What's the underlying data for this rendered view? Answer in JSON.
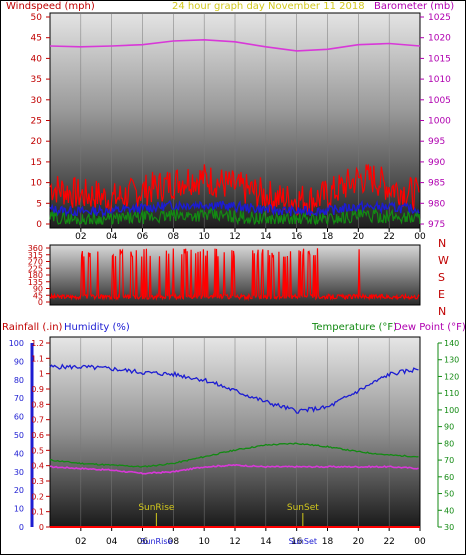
{
  "header": {
    "left": "Windspeed (mph)",
    "center": "24 hour graph day   November 11 2018",
    "right": "Barometer (mb)"
  },
  "colors": {
    "red": "#ff0000",
    "blue": "#1c1cd2",
    "green": "#138a13",
    "magenta": "#d838d8",
    "yellow": "#d2c81c",
    "frame": "#000000"
  },
  "chart_data": [
    {
      "type": "line",
      "name": "wind-barometer",
      "x_ticks": [
        "02",
        "04",
        "06",
        "08",
        "10",
        "12",
        "14",
        "16",
        "18",
        "20",
        "22",
        "00"
      ],
      "left_axis": {
        "label": "Windspeed (mph)",
        "ticks": [
          0,
          5,
          10,
          15,
          20,
          25,
          30,
          35,
          40,
          45,
          50
        ],
        "range": [
          0,
          50
        ]
      },
      "right_axis": {
        "label": "Barometer (mb)",
        "ticks": [
          975,
          980,
          985,
          990,
          995,
          1000,
          1005,
          1010,
          1015,
          1020,
          1025
        ],
        "range": [
          975,
          1025
        ]
      },
      "series": [
        {
          "name": "Barometer (mb)",
          "axis": "right",
          "color": "#d838d8",
          "points": [
            [
              0,
              1018
            ],
            [
              2,
              1017.8
            ],
            [
              4,
              1018
            ],
            [
              6,
              1018.3
            ],
            [
              8,
              1019.2
            ],
            [
              10,
              1019.5
            ],
            [
              12,
              1019
            ],
            [
              14,
              1017.8
            ],
            [
              16,
              1016.8
            ],
            [
              18,
              1017.2
            ],
            [
              20,
              1018.3
            ],
            [
              22,
              1018.6
            ],
            [
              24,
              1018
            ]
          ]
        },
        {
          "name": "Windspeed (mph)",
          "axis": "left",
          "color": "#ff0000",
          "points": [
            [
              0,
              9
            ],
            [
              1,
              8
            ],
            [
              2,
              7
            ],
            [
              3,
              7
            ],
            [
              4,
              6
            ],
            [
              5,
              7
            ],
            [
              6,
              8
            ],
            [
              7,
              9
            ],
            [
              8,
              10
            ],
            [
              9,
              11
            ],
            [
              10,
              11
            ],
            [
              11,
              10
            ],
            [
              12,
              9
            ],
            [
              13,
              8
            ],
            [
              14,
              7
            ],
            [
              15,
              6
            ],
            [
              16,
              6
            ],
            [
              17,
              6
            ],
            [
              18,
              7
            ],
            [
              19,
              9
            ],
            [
              20,
              11
            ],
            [
              21,
              11
            ],
            [
              22,
              9
            ],
            [
              23,
              8
            ],
            [
              24,
              7
            ]
          ]
        },
        {
          "name": "Average windspeed",
          "axis": "left",
          "color": "#1c1cd2",
          "points": [
            [
              0,
              3.5
            ],
            [
              2,
              3
            ],
            [
              4,
              3.2
            ],
            [
              6,
              3.8
            ],
            [
              8,
              4.5
            ],
            [
              10,
              4.8
            ],
            [
              12,
              4.2
            ],
            [
              14,
              3.5
            ],
            [
              16,
              3
            ],
            [
              18,
              3.2
            ],
            [
              20,
              4.2
            ],
            [
              22,
              4
            ],
            [
              24,
              3.5
            ]
          ]
        },
        {
          "name": "Gust minimum",
          "axis": "left",
          "color": "#138a13",
          "points": [
            [
              0,
              1.5
            ],
            [
              2,
              1
            ],
            [
              4,
              1.2
            ],
            [
              6,
              1.5
            ],
            [
              8,
              2
            ],
            [
              10,
              2.2
            ],
            [
              12,
              1.8
            ],
            [
              14,
              1.2
            ],
            [
              16,
              1
            ],
            [
              18,
              1.2
            ],
            [
              20,
              2
            ],
            [
              22,
              1.8
            ],
            [
              24,
              1.5
            ]
          ]
        }
      ]
    },
    {
      "type": "line",
      "name": "wind-direction",
      "left_axis": {
        "ticks": [
          0,
          45,
          90,
          135,
          180,
          225,
          270,
          315,
          360
        ],
        "range": [
          0,
          360
        ]
      },
      "right_labels": [
        "N",
        "W",
        "S",
        "E",
        "N"
      ],
      "series": [
        {
          "name": "Wind direction",
          "color": "#ff0000",
          "points": [
            [
              0,
              35
            ],
            [
              1,
              20
            ],
            [
              2,
              18
            ],
            [
              3,
              10
            ],
            [
              4,
              355
            ],
            [
              5,
              20
            ],
            [
              6,
              340
            ],
            [
              7,
              30
            ],
            [
              8,
              320
            ],
            [
              9,
              350
            ],
            [
              10,
              40
            ],
            [
              11,
              330
            ],
            [
              12,
              15
            ],
            [
              13,
              345
            ],
            [
              14,
              25
            ],
            [
              15,
              350
            ],
            [
              16,
              30
            ],
            [
              17,
              300
            ],
            [
              18,
              60
            ],
            [
              19,
              20
            ],
            [
              20,
              15
            ],
            [
              21,
              25
            ],
            [
              22,
              30
            ],
            [
              23,
              20
            ],
            [
              24,
              25
            ]
          ]
        }
      ]
    },
    {
      "type": "line",
      "name": "temp-humidity-rain",
      "header": {
        "left1": "Rainfall (.in)",
        "left2": "Humidity (%)",
        "right1": "Temperature (°F)",
        "right2": "Dew Point (°F)"
      },
      "x_ticks": [
        "02",
        "04",
        "06",
        "08",
        "10",
        "12",
        "14",
        "16",
        "18",
        "20",
        "22",
        "00"
      ],
      "humidity_axis": {
        "ticks": [
          0,
          10,
          20,
          30,
          40,
          50,
          60,
          70,
          80,
          90,
          100
        ],
        "range": [
          0,
          100
        ]
      },
      "rain_axis": {
        "ticks": [
          0,
          0.1,
          0.2,
          0.3,
          0.4,
          0.5,
          0.6,
          0.7,
          0.8,
          0.9,
          1,
          1.1,
          1.2
        ],
        "range": [
          0,
          1.2
        ]
      },
      "temp_axis": {
        "ticks": [
          30,
          40,
          50,
          60,
          70,
          80,
          90,
          100,
          110,
          120,
          130,
          140
        ],
        "range": [
          30,
          140
        ]
      },
      "markers": [
        {
          "label": "SunRise",
          "hour": 6.9
        },
        {
          "label": "SunSet",
          "hour": 16.4
        }
      ],
      "series": [
        {
          "name": "Humidity (%)",
          "axis": "humidity",
          "color": "#1c1cd2",
          "points": [
            [
              0,
              87
            ],
            [
              2,
              87
            ],
            [
              4,
              86
            ],
            [
              6,
              84
            ],
            [
              8,
              83
            ],
            [
              10,
              80
            ],
            [
              12,
              74
            ],
            [
              14,
              68
            ],
            [
              16,
              63
            ],
            [
              18,
              65
            ],
            [
              20,
              74
            ],
            [
              22,
              83
            ],
            [
              24,
              86
            ]
          ]
        },
        {
          "name": "Temperature (°F)",
          "axis": "temp",
          "color": "#138a13",
          "points": [
            [
              0,
              70
            ],
            [
              2,
              68
            ],
            [
              4,
              67
            ],
            [
              6,
              66
            ],
            [
              8,
              68
            ],
            [
              10,
              72
            ],
            [
              12,
              76
            ],
            [
              14,
              79
            ],
            [
              16,
              80
            ],
            [
              18,
              78
            ],
            [
              20,
              75
            ],
            [
              22,
              73
            ],
            [
              24,
              72
            ]
          ]
        },
        {
          "name": "Dew Point (°F)",
          "axis": "temp",
          "color": "#d838d8",
          "points": [
            [
              0,
              66
            ],
            [
              2,
              65
            ],
            [
              4,
              64
            ],
            [
              6,
              62
            ],
            [
              8,
              63
            ],
            [
              10,
              66
            ],
            [
              12,
              67
            ],
            [
              14,
              66
            ],
            [
              16,
              66
            ],
            [
              18,
              66
            ],
            [
              20,
              66
            ],
            [
              22,
              66
            ],
            [
              24,
              65
            ]
          ]
        },
        {
          "name": "Rainfall (.in)",
          "axis": "rain",
          "color": "#ff0000",
          "points": [
            [
              0,
              0
            ],
            [
              24,
              0
            ]
          ]
        }
      ]
    }
  ]
}
